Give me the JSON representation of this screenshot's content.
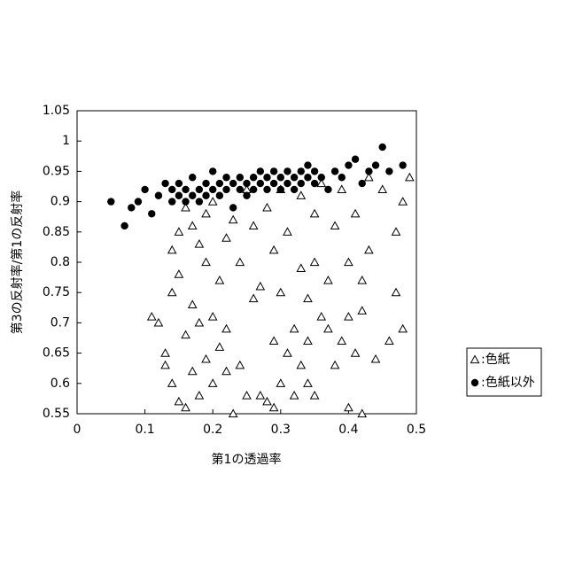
{
  "chart_data": {
    "type": "scatter",
    "xlabel": "第1の透過率",
    "ylabel": "第3の反射率/第1の反射率",
    "xlim": [
      0,
      0.5
    ],
    "ylim": [
      0.55,
      1.05
    ],
    "xticks": [
      0,
      0.1,
      0.2,
      0.3,
      0.4,
      0.5
    ],
    "yticks": [
      0.55,
      0.6,
      0.65,
      0.7,
      0.75,
      0.8,
      0.85,
      0.9,
      0.95,
      1,
      1.05
    ],
    "legend": "right",
    "series": [
      {
        "name": ":色紙",
        "marker": "triangle",
        "color": "#000000",
        "x": [
          0.11,
          0.12,
          0.13,
          0.13,
          0.14,
          0.14,
          0.14,
          0.15,
          0.15,
          0.15,
          0.16,
          0.16,
          0.16,
          0.17,
          0.17,
          0.17,
          0.18,
          0.18,
          0.18,
          0.19,
          0.19,
          0.19,
          0.2,
          0.2,
          0.2,
          0.21,
          0.21,
          0.22,
          0.22,
          0.22,
          0.23,
          0.23,
          0.24,
          0.24,
          0.25,
          0.25,
          0.26,
          0.26,
          0.27,
          0.27,
          0.28,
          0.28,
          0.29,
          0.29,
          0.29,
          0.3,
          0.3,
          0.3,
          0.31,
          0.31,
          0.32,
          0.32,
          0.33,
          0.33,
          0.33,
          0.34,
          0.34,
          0.34,
          0.35,
          0.35,
          0.35,
          0.36,
          0.36,
          0.37,
          0.37,
          0.38,
          0.38,
          0.39,
          0.39,
          0.4,
          0.4,
          0.4,
          0.41,
          0.41,
          0.42,
          0.42,
          0.42,
          0.43,
          0.43,
          0.44,
          0.45,
          0.46,
          0.47,
          0.47,
          0.48,
          0.48,
          0.49
        ],
        "values": [
          0.71,
          0.7,
          0.63,
          0.65,
          0.82,
          0.75,
          0.6,
          0.85,
          0.78,
          0.57,
          0.89,
          0.68,
          0.56,
          0.86,
          0.62,
          0.73,
          0.58,
          0.83,
          0.7,
          0.88,
          0.64,
          0.8,
          0.9,
          0.71,
          0.6,
          0.77,
          0.66,
          0.84,
          0.62,
          0.69,
          0.55,
          0.87,
          0.63,
          0.8,
          0.92,
          0.58,
          0.74,
          0.86,
          0.58,
          0.76,
          0.57,
          0.89,
          0.56,
          0.67,
          0.82,
          0.92,
          0.6,
          0.75,
          0.85,
          0.65,
          0.58,
          0.69,
          0.79,
          0.63,
          0.91,
          0.67,
          0.6,
          0.74,
          0.88,
          0.58,
          0.8,
          0.93,
          0.71,
          0.69,
          0.77,
          0.63,
          0.86,
          0.67,
          0.92,
          0.8,
          0.56,
          0.71,
          0.88,
          0.65,
          0.55,
          0.77,
          0.72,
          0.94,
          0.82,
          0.64,
          0.92,
          0.67,
          0.85,
          0.75,
          0.69,
          0.9,
          0.94
        ]
      },
      {
        "name": ":色紙以外",
        "marker": "circle",
        "color": "#000000",
        "x": [
          0.05,
          0.07,
          0.08,
          0.09,
          0.1,
          0.11,
          0.12,
          0.13,
          0.14,
          0.14,
          0.15,
          0.15,
          0.16,
          0.16,
          0.17,
          0.17,
          0.18,
          0.18,
          0.19,
          0.19,
          0.2,
          0.2,
          0.21,
          0.21,
          0.22,
          0.22,
          0.23,
          0.23,
          0.24,
          0.24,
          0.25,
          0.25,
          0.26,
          0.26,
          0.27,
          0.27,
          0.28,
          0.28,
          0.29,
          0.29,
          0.3,
          0.3,
          0.31,
          0.31,
          0.32,
          0.32,
          0.33,
          0.33,
          0.34,
          0.34,
          0.35,
          0.35,
          0.36,
          0.37,
          0.38,
          0.39,
          0.4,
          0.41,
          0.42,
          0.43,
          0.44,
          0.45,
          0.46,
          0.48
        ],
        "values": [
          0.9,
          0.86,
          0.89,
          0.9,
          0.92,
          0.88,
          0.91,
          0.93,
          0.9,
          0.92,
          0.91,
          0.93,
          0.9,
          0.92,
          0.91,
          0.94,
          0.92,
          0.9,
          0.93,
          0.91,
          0.92,
          0.95,
          0.93,
          0.91,
          0.92,
          0.94,
          0.93,
          0.89,
          0.92,
          0.94,
          0.93,
          0.91,
          0.94,
          0.92,
          0.93,
          0.95,
          0.92,
          0.94,
          0.93,
          0.95,
          0.94,
          0.92,
          0.93,
          0.95,
          0.94,
          0.92,
          0.95,
          0.93,
          0.94,
          0.96,
          0.93,
          0.95,
          0.94,
          0.92,
          0.95,
          0.94,
          0.96,
          0.97,
          0.93,
          0.95,
          0.96,
          0.99,
          0.95,
          0.96
        ]
      }
    ]
  }
}
